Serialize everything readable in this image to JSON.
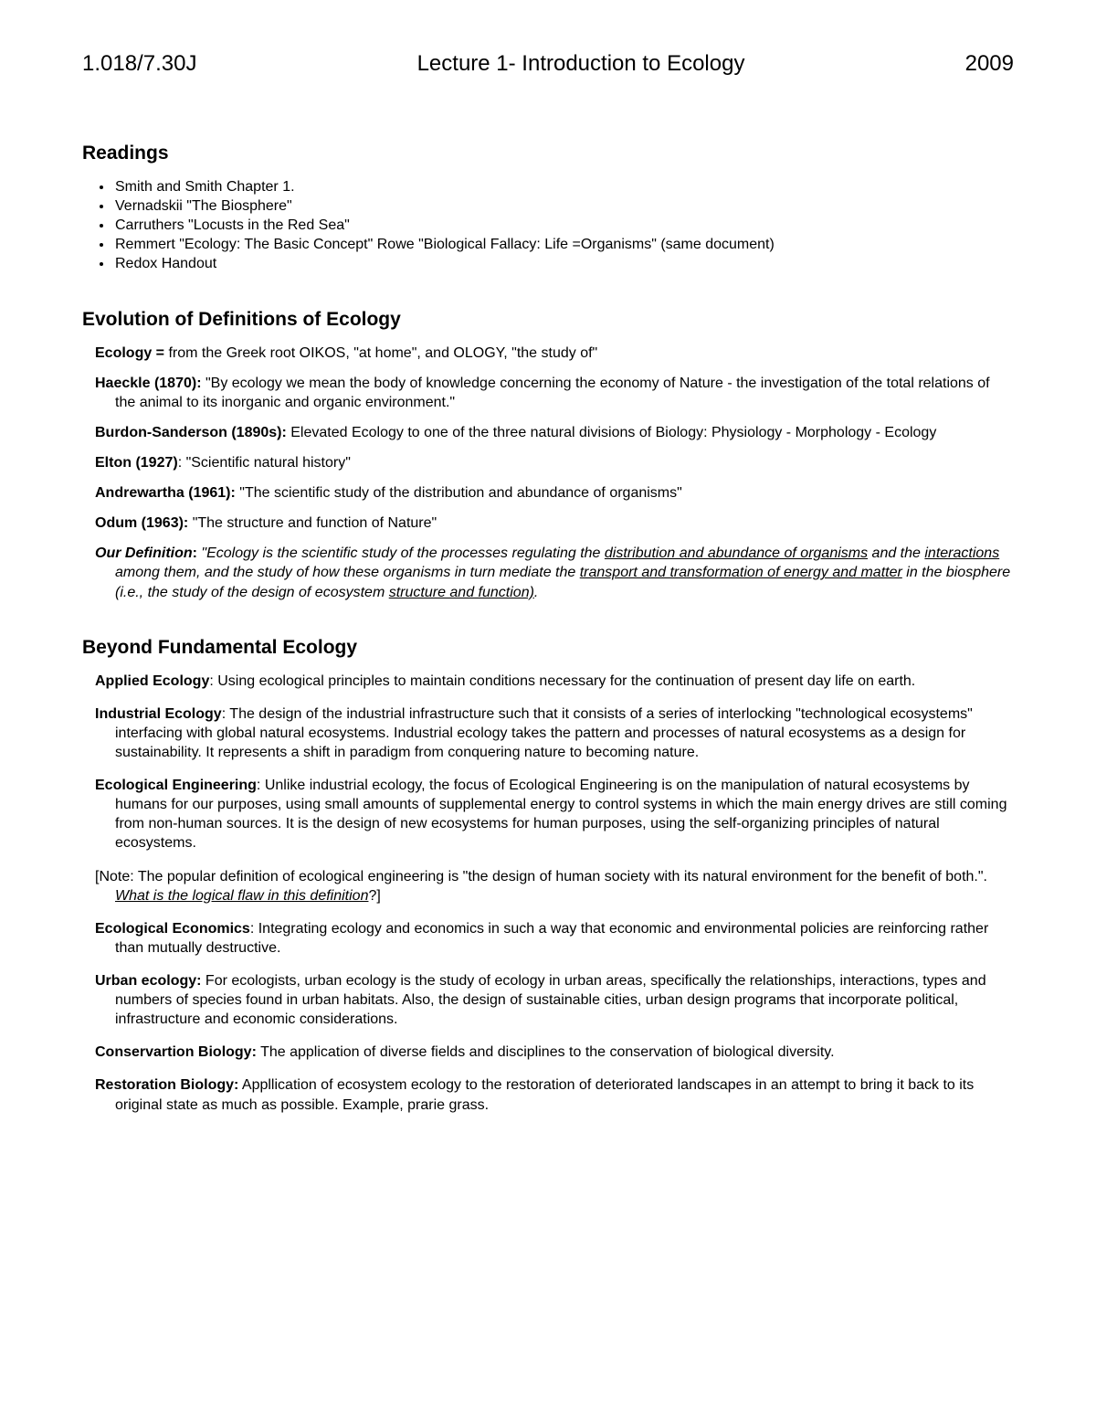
{
  "header": {
    "course": "1.018/7.30J",
    "title": "Lecture 1- Introduction to Ecology",
    "year": "2009"
  },
  "readings": {
    "heading": "Readings",
    "items": [
      "Smith and Smith Chapter 1.",
      "Vernadskii   \"The Biosphere\"",
      "Carruthers   \"Locusts in the Red Sea\"",
      "Remmert   \"Ecology:  The Basic Concept\"  Rowe  \"Biological Fallacy:  Life =Organisms\"   (same document)",
      "Redox Handout"
    ]
  },
  "evolution": {
    "heading": "Evolution of Definitions of Ecology",
    "items": [
      {
        "term": "Ecology  = ",
        "body": " from the Greek root OIKOS, \"at home\", and OLOGY, \"the study of\""
      },
      {
        "term": "Haeckle (1870):",
        "body": "  \"By ecology we mean the body of knowledge concerning the economy of Nature - the investigation of the total relations of the animal to its inorganic and organic environment.\""
      },
      {
        "term": "Burdon-Sanderson (1890s):",
        "body": "  Elevated Ecology to one of the three natural divisions of Biology:   Physiology  - Morphology - Ecology"
      },
      {
        "term": "Elton (1927)",
        "body": ":  \"Scientific natural history\""
      },
      {
        "term": "Andrewartha (1961):",
        "body": "  \"The scientific study of the distribution and abundance of organisms\""
      },
      {
        "term": "Odum (1963):",
        "body": "  \"The structure and function of Nature\""
      }
    ],
    "ourdef": {
      "term": "Our Definition",
      "colon": ":",
      "pre": "  \"Ecology is the scientific study of the processes regulating the ",
      "u1": "distribution and abundance of organisms",
      "mid1": " and the ",
      "u2": "interactions",
      "mid2": " among them, and the study of how these organisms in turn mediate the ",
      "u3": "transport and transformation of energy and matter",
      "mid3": " in the biosphere (i.e., the study of the design of ecosystem ",
      "u4": "structure and function)",
      "post": "."
    }
  },
  "beyond": {
    "heading": "Beyond Fundamental Ecology",
    "items": [
      {
        "term": "Applied Ecology",
        "body": ": Using ecological principles to maintain conditions necessary for the continuation of present day life on earth."
      },
      {
        "term": "Industrial Ecology",
        "body": ": The design of the industrial infrastructure such that it consists of a series of interlocking \"technological ecosystems\" interfacing with global natural ecosystems. Industrial ecology takes the pattern and processes of natural ecosystems as a design for sustainability. It represents a shift in paradigm from conquering nature to becoming nature."
      },
      {
        "term": "Ecological Engineering",
        "body": ": Unlike industrial ecology, the focus of Ecological Engineering is on the manipulation of natural ecosystems by humans for our purposes, using small amounts of supplemental energy to control systems in which the main energy drives are still coming from non-human sources. It is the design of new ecosystems for human purposes, using the self-organizing principles of natural ecosystems."
      }
    ],
    "note": {
      "pre": "[Note: The popular definition of ecological engineering is \"the design of human society with its natural environment for the benefit of both.\".  ",
      "u": "What is the logical flaw in this definition",
      "post": "?]"
    },
    "items2": [
      {
        "term": "Ecological Economics",
        "body": ": Integrating ecology and economics in such a way that economic and environmental policies are reinforcing rather than mutually destructive."
      },
      {
        "term": "Urban ecology:",
        "body": " For ecologists, urban ecology is the study of ecology in urban areas, specifically the relationships, interactions, types and numbers of species found in urban habitats.  Also, the design of sustainable cities, urban design programs that incorporate political, infrastructure and economic considerations."
      },
      {
        "term": "Conservartion Biology:",
        "body": "  The application of diverse fields and disciplines to the conservation of biological diversity."
      },
      {
        "term": "Restoration Biology:",
        "body": "  Appllication of ecosystem ecology to the restoration of deteriorated landscapes in an attempt to bring it back to its original state as much as possible.   Example, prarie grass."
      }
    ]
  }
}
